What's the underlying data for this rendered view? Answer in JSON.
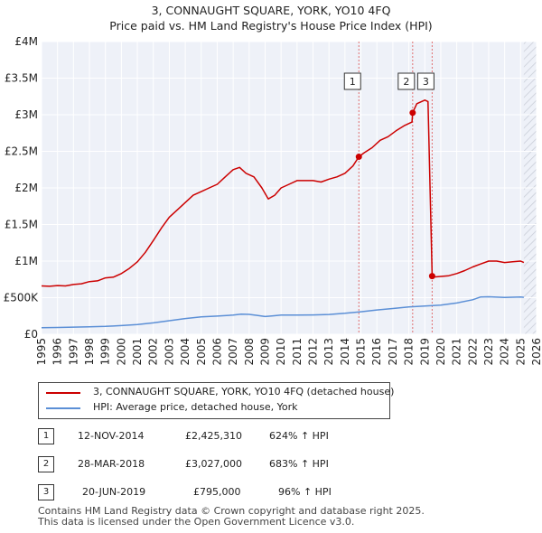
{
  "title_line1": "3, CONNAUGHT SQUARE, YORK, YO10 4FQ",
  "title_line2": "Price paid vs. HM Land Registry's House Price Index (HPI)",
  "chart_data": {
    "type": "line",
    "title": "3, CONNAUGHT SQUARE, YORK, YO10 4FQ — Price paid vs. HM Land Registry's House Price Index (HPI)",
    "ylim": [
      0,
      4000000
    ],
    "xlim": [
      1995,
      2026
    ],
    "y_ticks": [
      {
        "value": 0,
        "label": "£0"
      },
      {
        "value": 500000,
        "label": "£500K"
      },
      {
        "value": 1000000,
        "label": "£1M"
      },
      {
        "value": 1500000,
        "label": "£1.5M"
      },
      {
        "value": 2000000,
        "label": "£2M"
      },
      {
        "value": 2500000,
        "label": "£2.5M"
      },
      {
        "value": 3000000,
        "label": "£3M"
      },
      {
        "value": 3500000,
        "label": "£3.5M"
      },
      {
        "value": 4000000,
        "label": "£4M"
      }
    ],
    "x_ticks": [
      "1995",
      "1996",
      "1997",
      "1998",
      "1999",
      "2000",
      "2001",
      "2002",
      "2003",
      "2004",
      "2005",
      "2006",
      "2007",
      "2008",
      "2009",
      "2010",
      "2011",
      "2012",
      "2013",
      "2014",
      "2015",
      "2016",
      "2017",
      "2018",
      "2019",
      "2020",
      "2021",
      "2022",
      "2023",
      "2024",
      "2025",
      "2026"
    ],
    "grid": true,
    "data_end_year": 2025.2,
    "series": [
      {
        "name": "3, CONNAUGHT SQUARE, YORK, YO10 4FQ (detached house)",
        "color": "#cc0000",
        "x": [
          1995.0,
          1995.5,
          1996.0,
          1996.5,
          1997.0,
          1997.5,
          1998.0,
          1998.5,
          1999.0,
          1999.5,
          2000.0,
          2000.5,
          2001.0,
          2001.5,
          2002.0,
          2002.5,
          2003.0,
          2003.5,
          2004.0,
          2004.5,
          2005.0,
          2005.5,
          2006.0,
          2006.5,
          2007.0,
          2007.4,
          2007.8,
          2008.3,
          2008.8,
          2009.2,
          2009.6,
          2010.0,
          2010.5,
          2011.0,
          2011.5,
          2012.0,
          2012.5,
          2013.0,
          2013.5,
          2014.0,
          2014.5,
          2014.87,
          2015.2,
          2015.7,
          2016.2,
          2016.7,
          2017.2,
          2017.7,
          2018.2,
          2018.24,
          2018.5,
          2019.0,
          2019.2,
          2019.46,
          2019.5,
          2020.0,
          2020.5,
          2021.0,
          2021.5,
          2022.0,
          2022.5,
          2023.0,
          2023.5,
          2024.0,
          2024.5,
          2025.0,
          2025.2
        ],
        "values": [
          660000,
          655000,
          665000,
          660000,
          680000,
          690000,
          720000,
          730000,
          770000,
          780000,
          830000,
          900000,
          990000,
          1120000,
          1280000,
          1450000,
          1600000,
          1700000,
          1800000,
          1900000,
          1950000,
          2000000,
          2050000,
          2150000,
          2250000,
          2280000,
          2200000,
          2150000,
          2000000,
          1850000,
          1900000,
          2000000,
          2050000,
          2100000,
          2100000,
          2100000,
          2080000,
          2120000,
          2150000,
          2200000,
          2300000,
          2425310,
          2480000,
          2550000,
          2650000,
          2700000,
          2780000,
          2850000,
          2900000,
          3027000,
          3150000,
          3200000,
          3180000,
          795000,
          780000,
          790000,
          800000,
          830000,
          870000,
          920000,
          960000,
          1000000,
          1000000,
          980000,
          990000,
          1000000,
          980000
        ]
      },
      {
        "name": "HPI: Average price, detached house, York",
        "color": "#5b8fd6",
        "x": [
          1995.0,
          1996.0,
          1997.0,
          1998.0,
          1999.0,
          2000.0,
          2001.0,
          2002.0,
          2003.0,
          2004.0,
          2005.0,
          2006.0,
          2007.0,
          2007.5,
          2008.0,
          2008.5,
          2009.0,
          2009.5,
          2010.0,
          2011.0,
          2012.0,
          2013.0,
          2014.0,
          2015.0,
          2016.0,
          2017.0,
          2018.0,
          2019.0,
          2020.0,
          2021.0,
          2022.0,
          2022.5,
          2023.0,
          2024.0,
          2025.0,
          2025.2
        ],
        "values": [
          90000,
          93000,
          97000,
          102000,
          108000,
          118000,
          132000,
          155000,
          185000,
          215000,
          238000,
          248000,
          262000,
          275000,
          272000,
          258000,
          242000,
          252000,
          262000,
          262000,
          264000,
          270000,
          287000,
          307000,
          332000,
          352000,
          374000,
          387000,
          397000,
          427000,
          472000,
          510000,
          512000,
          502000,
          510000,
          505000
        ]
      }
    ],
    "annotations": [
      {
        "label": "1",
        "x": 2014.87,
        "value": 2425310
      },
      {
        "label": "2",
        "x": 2018.24,
        "value": 3027000
      },
      {
        "label": "3",
        "x": 2019.46,
        "value": 795000
      }
    ]
  },
  "legend": {
    "items": [
      {
        "label": "3, CONNAUGHT SQUARE, YORK, YO10 4FQ (detached house)",
        "color": "#cc0000"
      },
      {
        "label": "HPI: Average price, detached house, York",
        "color": "#5b8fd6"
      }
    ]
  },
  "sales": [
    {
      "num": "1",
      "date": "12-NOV-2014",
      "price": "£2,425,310",
      "pct": "624% ↑ HPI"
    },
    {
      "num": "2",
      "date": "28-MAR-2018",
      "price": "£3,027,000",
      "pct": "683% ↑ HPI"
    },
    {
      "num": "3",
      "date": "20-JUN-2019",
      "price": "£795,000",
      "pct": "96% ↑ HPI"
    }
  ],
  "footer": {
    "line1": "Contains HM Land Registry data © Crown copyright and database right 2025.",
    "line2": "This data is licensed under the Open Government Licence v3.0."
  }
}
